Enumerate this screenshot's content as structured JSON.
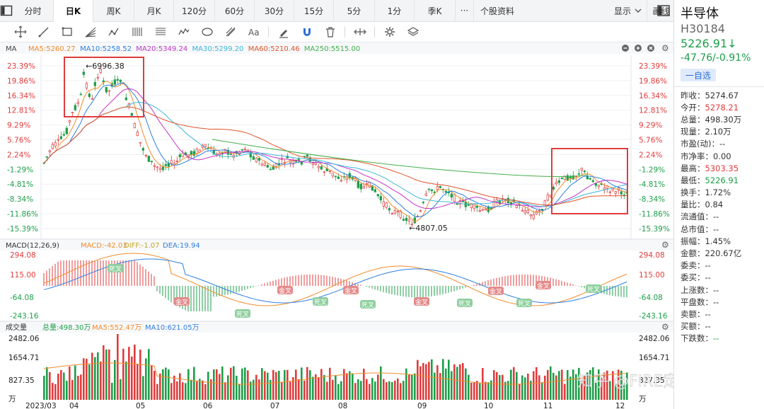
{
  "tabs": {
    "items": [
      "分时",
      "日K",
      "周K",
      "月K",
      "120分",
      "60分",
      "30分",
      "15分",
      "5分",
      "1分",
      "季K"
    ],
    "active": 1,
    "dots": "···",
    "stock_info": "个股资料",
    "display": "显示",
    "draw": "画线"
  },
  "tools": [
    "crosshair",
    "line",
    "rect",
    "fan",
    "wave",
    "vlines",
    "hlines",
    "zigzag",
    "ellipse",
    "fib",
    "text",
    "brush",
    "magnet",
    "trash",
    "measure",
    "settings",
    "layers"
  ],
  "main": {
    "ma_label": "MA",
    "ma_items": [
      {
        "text": "MA5:5260.27",
        "color": "#f08c2b"
      },
      {
        "text": "MA10:5258.52",
        "color": "#2f7fe0"
      },
      {
        "text": "MA20:5349.24",
        "color": "#c236c9"
      },
      {
        "text": "MA30:5299.20",
        "color": "#3eb7d8"
      },
      {
        "text": "MA60:5210.46",
        "color": "#e0552b"
      },
      {
        "text": "MA250:5515.00",
        "color": "#42b04a"
      }
    ],
    "left_axis": [
      "23.39%",
      "19.86%",
      "16.34%",
      "12.81%",
      "9.29%",
      "5.76%",
      "2.24%",
      "-1.29%",
      "-4.81%",
      "-8.34%",
      "-11.86%",
      "-15.39%"
    ],
    "right_axis": [
      "23.39%",
      "19.86%",
      "16.34%",
      "12.81%",
      "9.29%",
      "5.76%",
      "2.24%",
      "-1.29%",
      "-4.81%",
      "-8.34%",
      "-11.86%",
      "-15.39%"
    ],
    "high_label": "←6996.38",
    "low_label": "←4807.05"
  },
  "macd": {
    "label": "MACD(12,26,9)",
    "macd_value": "MACD:-42.03",
    "diff_value": "DIFF:-1.07",
    "dea_value": "DEA:19.94",
    "left_axis": [
      "294.08",
      "115.00",
      "-64.08",
      "-243.16"
    ],
    "right_axis": [
      "294.08",
      "115.00",
      "-64.08",
      "-243.16"
    ],
    "golden": "金叉",
    "death": "死叉"
  },
  "volume": {
    "label": "成交量",
    "total": "总量:498.30万",
    "ma5": "MA5:552.47万",
    "ma10": "MA10:621.05万",
    "left_axis": [
      "2482.06",
      "1654.71",
      "827.35",
      "万"
    ],
    "right_axis": [
      "2482.06",
      "1654.71",
      "827.35",
      "万"
    ]
  },
  "x_axis": [
    "2023/03",
    "04",
    "05",
    "06",
    "07",
    "08",
    "09",
    "10",
    "11",
    "12"
  ],
  "watermark": "知乎 @FIRE定投",
  "side": {
    "name": "半导体",
    "code": "H30184",
    "price": "5226.91↓",
    "change": "-47.76/-0.91%",
    "add_watch": "一自选",
    "stats": [
      {
        "k": "昨收：",
        "v": "5274.67",
        "c": ""
      },
      {
        "k": "今开：",
        "v": "5278.21",
        "c": "red"
      },
      {
        "k": "总量：",
        "v": "498.30万",
        "c": ""
      },
      {
        "k": "现量：",
        "v": "2.10万",
        "c": ""
      },
      {
        "k": "市盈(动)：",
        "v": "--",
        "c": ""
      },
      {
        "k": "市净率：",
        "v": "0.00",
        "c": ""
      },
      {
        "k": "最高：",
        "v": "5303.35",
        "c": "red"
      },
      {
        "k": "最低：",
        "v": "5226.91",
        "c": "green"
      },
      {
        "k": "换手：",
        "v": "1.72%",
        "c": ""
      },
      {
        "k": "量比：",
        "v": "0.84",
        "c": ""
      },
      {
        "k": "流通值：",
        "v": "--",
        "c": ""
      },
      {
        "k": "总市值：",
        "v": "--",
        "c": ""
      },
      {
        "k": "振幅：",
        "v": "1.45%",
        "c": ""
      },
      {
        "k": "金额：",
        "v": "220.67亿",
        "c": ""
      },
      {
        "k": "委卖：",
        "v": "--",
        "c": ""
      },
      {
        "k": "委买：",
        "v": "--",
        "c": ""
      },
      {
        "k": "上涨数：",
        "v": "--",
        "c": ""
      },
      {
        "k": "平盘数：",
        "v": "--",
        "c": ""
      },
      {
        "k": "卖额：",
        "v": "--",
        "c": ""
      },
      {
        "k": "买额：",
        "v": "--",
        "c": ""
      },
      {
        "k": "下跌数：",
        "v": "--",
        "c": "green"
      }
    ]
  },
  "colors": {
    "up": "#e03c3c",
    "down": "#1e9e4a",
    "annot": "#e03c3c"
  }
}
